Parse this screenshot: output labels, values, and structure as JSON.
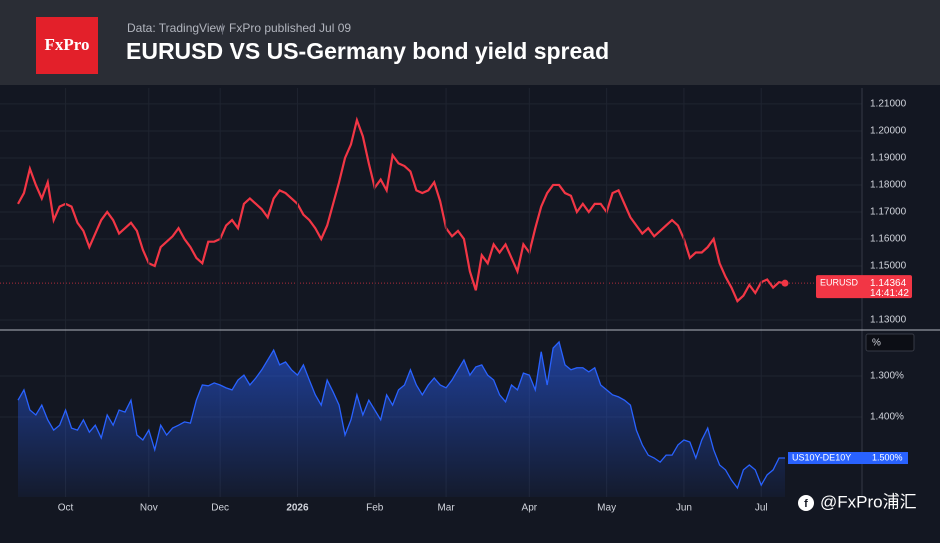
{
  "header": {
    "logo": "FxPro",
    "source": "Data: TradingView",
    "published": "FxPro published Jul 09",
    "title": "EURUSD VS US-Germany bond yield spread"
  },
  "watermark": "@FxPro浦汇",
  "chart_data": [
    {
      "type": "line",
      "series": [
        {
          "name": "EURUSD",
          "color": "#f23645",
          "values": [
            1.173,
            1.177,
            1.186,
            1.18,
            1.175,
            1.181,
            1.167,
            1.172,
            1.173,
            1.172,
            1.166,
            1.163,
            1.157,
            1.162,
            1.167,
            1.17,
            1.167,
            1.162,
            1.164,
            1.166,
            1.163,
            1.156,
            1.151,
            1.15,
            1.157,
            1.159,
            1.161,
            1.164,
            1.16,
            1.157,
            1.153,
            1.151,
            1.159,
            1.159,
            1.16,
            1.165,
            1.167,
            1.164,
            1.173,
            1.175,
            1.173,
            1.171,
            1.168,
            1.175,
            1.178,
            1.177,
            1.175,
            1.173,
            1.169,
            1.167,
            1.164,
            1.16,
            1.165,
            1.173,
            1.181,
            1.19,
            1.195,
            1.204,
            1.198,
            1.188,
            1.179,
            1.182,
            1.178,
            1.191,
            1.188,
            1.187,
            1.185,
            1.178,
            1.177,
            1.178,
            1.181,
            1.174,
            1.164,
            1.161,
            1.163,
            1.16,
            1.148,
            1.141,
            1.154,
            1.151,
            1.158,
            1.155,
            1.158,
            1.153,
            1.148,
            1.158,
            1.155,
            1.164,
            1.172,
            1.177,
            1.18,
            1.18,
            1.177,
            1.176,
            1.17,
            1.173,
            1.17,
            1.173,
            1.173,
            1.17,
            1.177,
            1.178,
            1.173,
            1.168,
            1.165,
            1.162,
            1.164,
            1.161,
            1.163,
            1.165,
            1.167,
            1.165,
            1.16,
            1.153,
            1.155,
            1.155,
            1.157,
            1.16,
            1.151,
            1.146,
            1.142,
            1.137,
            1.139,
            1.143,
            1.14,
            1.144,
            1.145,
            1.142,
            1.144,
            1.14364
          ],
          "last_label": "1.14364",
          "time": "14:41:42"
        }
      ],
      "ylim": [
        1.1263,
        1.2159
      ],
      "yticks": [
        {
          "value": 1.13,
          "label": "1.13000"
        },
        {
          "value": 1.15,
          "label": "1.15000"
        },
        {
          "value": 1.16,
          "label": "1.16000"
        },
        {
          "value": 1.17,
          "label": "1.17000"
        },
        {
          "value": 1.18,
          "label": "1.18000"
        },
        {
          "value": 1.19,
          "label": "1.19000"
        },
        {
          "value": 1.2,
          "label": "1.20000"
        },
        {
          "value": 1.21,
          "label": "1.21000"
        }
      ],
      "grid": true
    },
    {
      "type": "area",
      "series": [
        {
          "name": "US10Y-DE10Y",
          "color": "#2962ff",
          "values": [
            1.359,
            1.334,
            1.383,
            1.395,
            1.371,
            1.407,
            1.432,
            1.42,
            1.383,
            1.427,
            1.432,
            1.407,
            1.437,
            1.42,
            1.451,
            1.395,
            1.42,
            1.383,
            1.388,
            1.359,
            1.444,
            1.456,
            1.432,
            1.48,
            1.42,
            1.444,
            1.427,
            1.42,
            1.412,
            1.415,
            1.359,
            1.322,
            1.324,
            1.317,
            1.322,
            1.329,
            1.334,
            1.31,
            1.298,
            1.322,
            1.305,
            1.285,
            1.261,
            1.237,
            1.273,
            1.266,
            1.285,
            1.298,
            1.273,
            1.31,
            1.346,
            1.371,
            1.31,
            1.339,
            1.371,
            1.444,
            1.407,
            1.346,
            1.395,
            1.359,
            1.383,
            1.407,
            1.346,
            1.371,
            1.334,
            1.322,
            1.285,
            1.322,
            1.346,
            1.322,
            1.305,
            1.322,
            1.329,
            1.31,
            1.285,
            1.261,
            1.298,
            1.278,
            1.273,
            1.298,
            1.31,
            1.346,
            1.363,
            1.322,
            1.334,
            1.293,
            1.298,
            1.334,
            1.241,
            1.322,
            1.232,
            1.217,
            1.273,
            1.285,
            1.28,
            1.28,
            1.29,
            1.28,
            1.322,
            1.334,
            1.346,
            1.351,
            1.359,
            1.371,
            1.432,
            1.468,
            1.493,
            1.5,
            1.51,
            1.493,
            1.493,
            1.468,
            1.456,
            1.461,
            1.5,
            1.456,
            1.427,
            1.48,
            1.517,
            1.529,
            1.554,
            1.573,
            1.529,
            1.517,
            1.529,
            1.566,
            1.541,
            1.529,
            1.5,
            1.5
          ],
          "last_label": "1.500%"
        }
      ],
      "categories": [
        null,
        null,
        null,
        null,
        null,
        null,
        null,
        null,
        "Oct",
        null,
        null,
        null,
        null,
        null,
        null,
        null,
        null,
        null,
        null,
        null,
        null,
        null,
        "Nov",
        null,
        null,
        null,
        null,
        null,
        null,
        null,
        null,
        null,
        null,
        null,
        "Dec",
        null,
        null,
        null,
        null,
        null,
        null,
        null,
        null,
        null,
        null,
        null,
        null,
        "2026",
        null,
        null,
        null,
        null,
        null,
        null,
        null,
        null,
        null,
        null,
        null,
        null,
        "Feb",
        null,
        null,
        null,
        null,
        null,
        null,
        null,
        null,
        null,
        null,
        null,
        "Mar",
        null,
        null,
        null,
        null,
        null,
        null,
        null,
        null,
        null,
        null,
        null,
        null,
        null,
        "Apr",
        null,
        null,
        null,
        null,
        null,
        null,
        null,
        null,
        null,
        null,
        null,
        null,
        "May",
        null,
        null,
        null,
        null,
        null,
        null,
        null,
        null,
        null,
        null,
        null,
        null,
        "Jun",
        null,
        null,
        null,
        null,
        null,
        null,
        null,
        null,
        null,
        null,
        null,
        null,
        "Jul",
        null,
        null,
        null,
        null
      ],
      "ylim": [
        1.188,
        1.595
      ],
      "inverted": true,
      "yticks": [
        {
          "value": 1.3,
          "label": "1.300%"
        },
        {
          "value": 1.4,
          "label": "1.400%"
        }
      ],
      "unit": "%",
      "grid": true
    }
  ]
}
